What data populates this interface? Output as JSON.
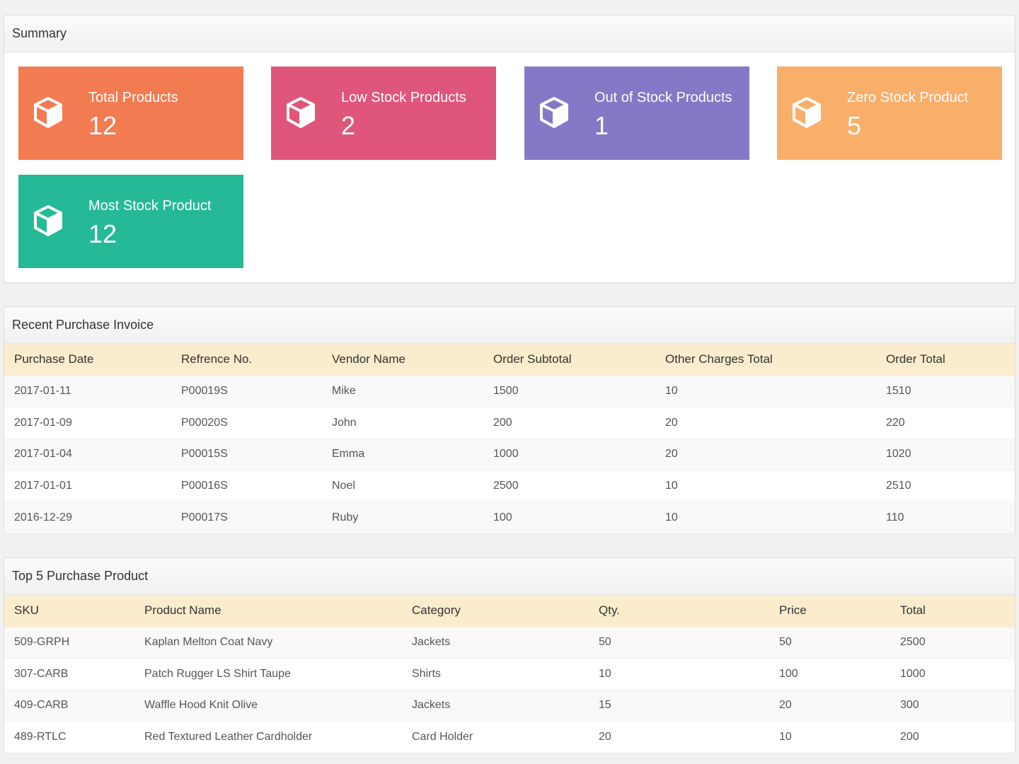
{
  "summary": {
    "title": "Summary",
    "cards": [
      {
        "label": "Total Products",
        "value": "12",
        "color": "#f27b52",
        "icon": "box-icon"
      },
      {
        "label": "Low Stock Products",
        "value": "2",
        "color": "#e0567a",
        "icon": "box-icon"
      },
      {
        "label": "Out of Stock Products",
        "value": "1",
        "color": "#8479c6",
        "icon": "box-icon"
      },
      {
        "label": "Zero Stock Product",
        "value": "5",
        "color": "#f9ae6a",
        "icon": "box-icon"
      },
      {
        "label": "Most Stock Product",
        "value": "12",
        "color": "#25b998",
        "icon": "box-icon"
      }
    ]
  },
  "invoice": {
    "title": "Recent Purchase Invoice",
    "columns": [
      "Purchase Date",
      "Refrence No.",
      "Vendor Name",
      "Order Subtotal",
      "Other Charges Total",
      "Order Total"
    ],
    "rows": [
      [
        "2017-01-11",
        "P00019S",
        "Mike",
        "1500",
        "10",
        "1510"
      ],
      [
        "2017-01-09",
        "P00020S",
        "John",
        "200",
        "20",
        "220"
      ],
      [
        "2017-01-04",
        "P00015S",
        "Emma",
        "1000",
        "20",
        "1020"
      ],
      [
        "2017-01-01",
        "P00016S",
        "Noel",
        "2500",
        "10",
        "2510"
      ],
      [
        "2016-12-29",
        "P00017S",
        "Ruby",
        "100",
        "10",
        "110"
      ]
    ]
  },
  "top5": {
    "title": "Top 5 Purchase Product",
    "columns": [
      "SKU",
      "Product Name",
      "Category",
      "Qty.",
      "Price",
      "Total"
    ],
    "rows": [
      [
        "509-GRPH",
        "Kaplan Melton Coat Navy",
        "Jackets",
        "50",
        "50",
        "2500"
      ],
      [
        "307-CARB",
        "Patch Rugger LS Shirt Taupe",
        "Shirts",
        "10",
        "100",
        "1000"
      ],
      [
        "409-CARB",
        "Waffle Hood Knit Olive",
        "Jackets",
        "15",
        "20",
        "300"
      ],
      [
        "489-RTLC",
        "Red Textured Leather Cardholder",
        "Card Holder",
        "20",
        "10",
        "200"
      ]
    ]
  }
}
